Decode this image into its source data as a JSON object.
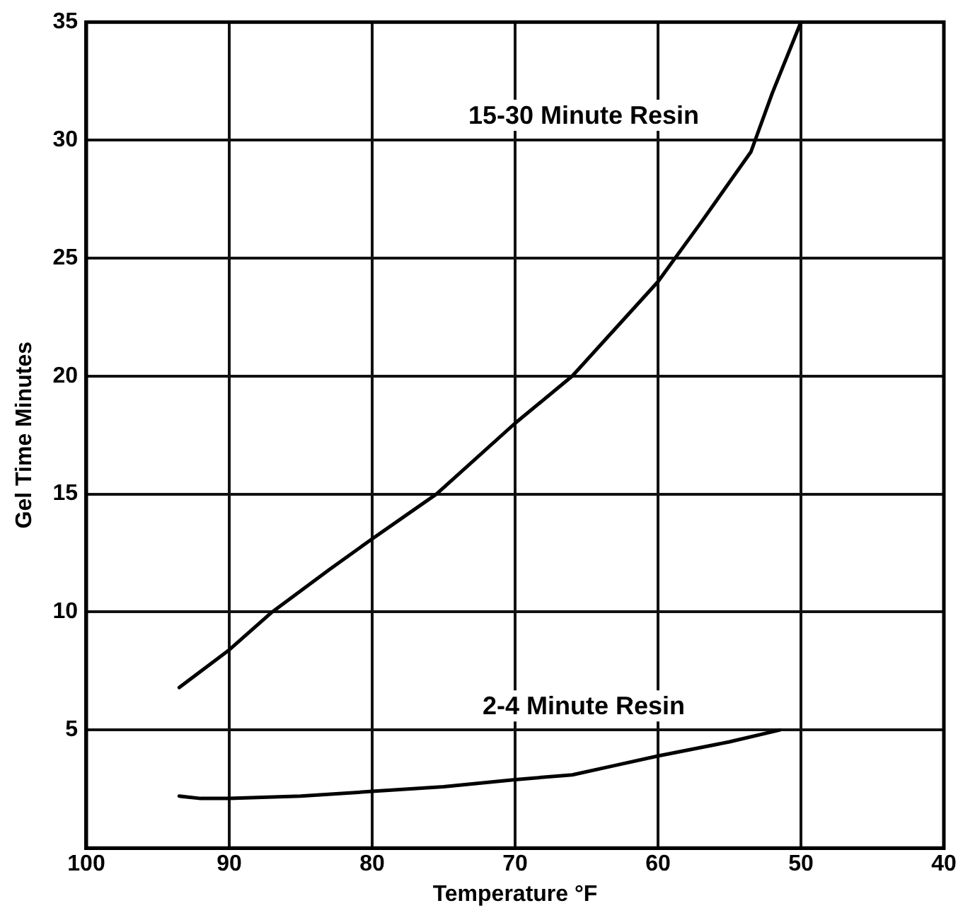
{
  "chart_data": {
    "type": "line",
    "xlabel": "Temperature °F",
    "ylabel": "Gel Time Minutes",
    "xlim": [
      100,
      40
    ],
    "xticks": [
      100,
      90,
      80,
      70,
      60,
      50,
      40
    ],
    "ylim": [
      0,
      35
    ],
    "yticks": [
      {
        "value": 0,
        "label": null
      },
      5,
      10,
      15,
      20,
      25,
      30,
      35
    ],
    "grid": true,
    "legend": false,
    "marker": "none",
    "line_style": "solid",
    "series": [
      {
        "name": "15-30 Minute Resin",
        "color": "#000000",
        "x": [
          93.5,
          90,
          87,
          83,
          80,
          75.5,
          70,
          66,
          63,
          60,
          57,
          53.5,
          52,
          50
        ],
        "values": [
          6.8,
          8.4,
          10,
          11.8,
          13.1,
          15,
          18,
          20,
          22,
          24,
          26.5,
          29.5,
          32,
          35
        ]
      },
      {
        "name": "2-4 Minute Resin",
        "color": "#000000",
        "x": [
          93.5,
          92,
          90,
          85,
          80,
          75,
          70,
          66,
          63,
          60,
          55,
          51.5
        ],
        "values": [
          2.2,
          2.1,
          2.1,
          2.2,
          2.4,
          2.6,
          2.9,
          3.1,
          3.5,
          3.9,
          4.5,
          5
        ]
      }
    ]
  }
}
